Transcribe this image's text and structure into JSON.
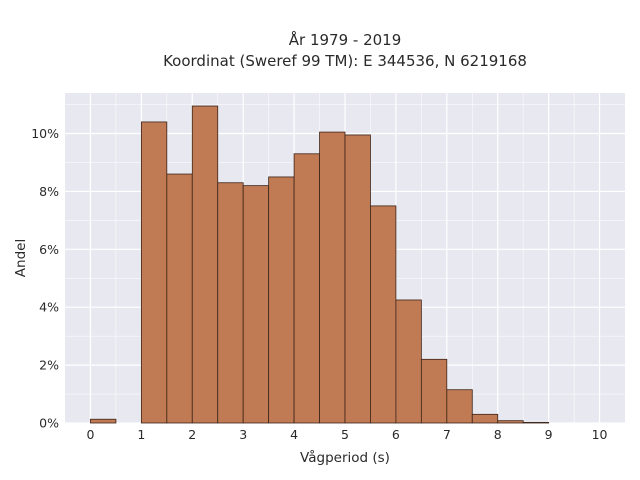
{
  "chart_data": {
    "type": "bar",
    "title": [
      "År 1979 - 2019",
      "Koordinat (Sweref 99 TM): E 344536, N 6219168"
    ],
    "xlabel": "Vågperiod (s)",
    "ylabel": "Andel",
    "xlim": [
      -0.5,
      10.5
    ],
    "ylim": [
      0,
      11.4
    ],
    "xticks": [
      0,
      1,
      2,
      3,
      4,
      5,
      6,
      7,
      8,
      9,
      10
    ],
    "yticks": [
      0,
      2,
      4,
      6,
      8,
      10
    ],
    "ytick_labels": [
      "0%",
      "2%",
      "4%",
      "6%",
      "8%",
      "10%"
    ],
    "bin_width": 0.5,
    "bins": [
      {
        "start": 0.0,
        "value": 0.13
      },
      {
        "start": 0.5,
        "value": 0.0
      },
      {
        "start": 1.0,
        "value": 10.4
      },
      {
        "start": 1.5,
        "value": 8.6
      },
      {
        "start": 2.0,
        "value": 10.95
      },
      {
        "start": 2.5,
        "value": 8.3
      },
      {
        "start": 3.0,
        "value": 8.2
      },
      {
        "start": 3.5,
        "value": 8.5
      },
      {
        "start": 4.0,
        "value": 9.3
      },
      {
        "start": 4.5,
        "value": 10.05
      },
      {
        "start": 5.0,
        "value": 9.95
      },
      {
        "start": 5.5,
        "value": 7.5
      },
      {
        "start": 6.0,
        "value": 4.25
      },
      {
        "start": 6.5,
        "value": 2.2
      },
      {
        "start": 7.0,
        "value": 1.15
      },
      {
        "start": 7.5,
        "value": 0.3
      },
      {
        "start": 8.0,
        "value": 0.08
      },
      {
        "start": 8.5,
        "value": 0.02
      },
      {
        "start": 9.0,
        "value": 0.0
      },
      {
        "start": 9.5,
        "value": 0.0
      }
    ],
    "grid": true,
    "colors": {
      "bar_fill": "#c07a54",
      "bar_stroke": "#3d2418",
      "plot_background": "#e8e8f0",
      "grid": "#ffffff"
    }
  }
}
